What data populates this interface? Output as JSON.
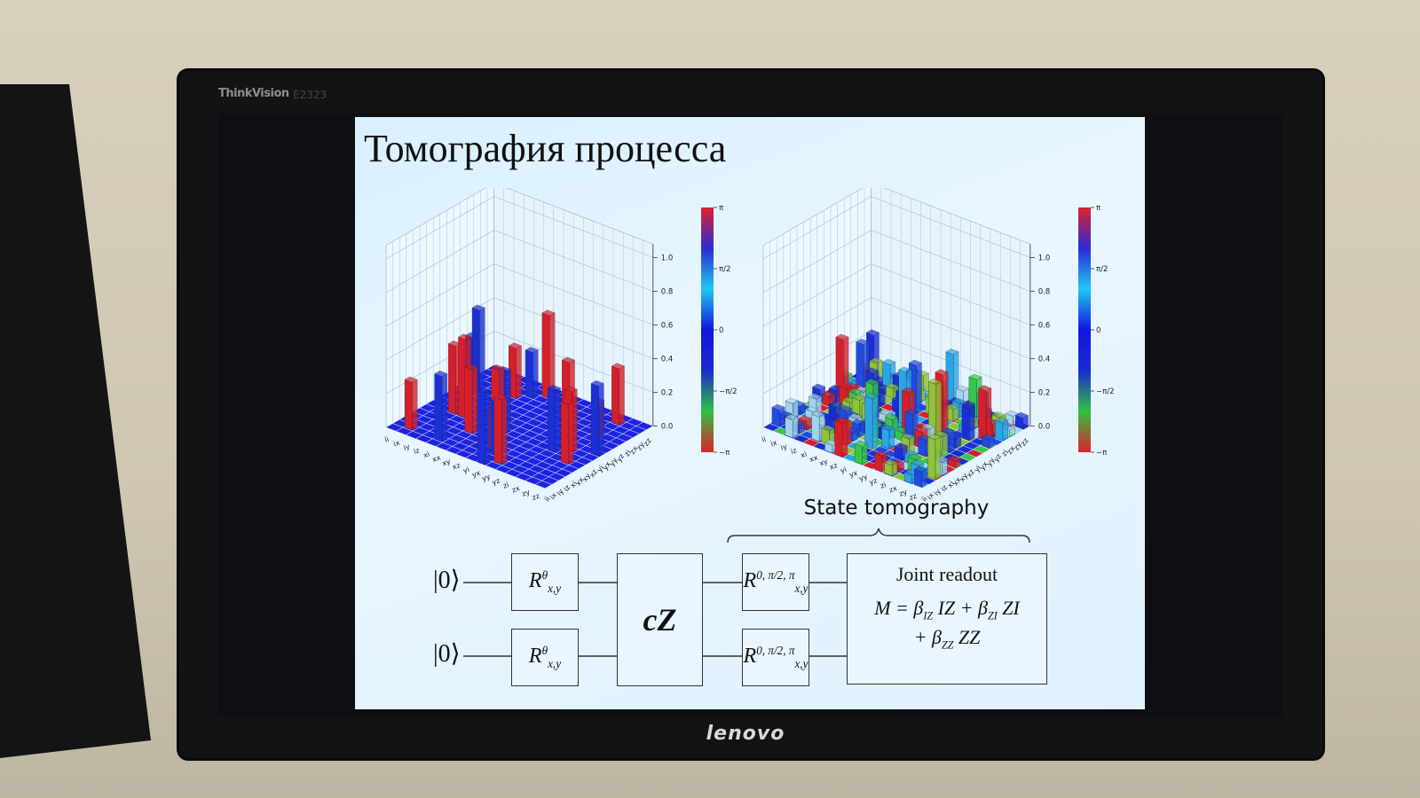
{
  "monitor": {
    "brand": "ThinkVision",
    "model": "E2323",
    "logo": "lenovo"
  },
  "slide": {
    "title": "Томография процесса",
    "plots": [
      {
        "z_ticks": [
          "0.0",
          "0.2",
          "0.4",
          "0.6",
          "0.8",
          "1.0"
        ],
        "x_labels": [
          "ii",
          "ix",
          "iy",
          "iz",
          "xi",
          "xx",
          "xy",
          "xz",
          "yi",
          "yx",
          "yy",
          "yz",
          "zi",
          "zx",
          "zy",
          "zz"
        ],
        "y_labels": [
          "ii",
          "ix",
          "iy",
          "iz",
          "xi",
          "xx",
          "xy",
          "xz",
          "yi",
          "yx",
          "yy",
          "yz",
          "zi",
          "zx",
          "zy",
          "zz"
        ],
        "colorbar_ticks": [
          "π",
          "π/2",
          "0",
          "−π/2",
          "−π"
        ]
      },
      {
        "z_ticks": [
          "0.0",
          "0.2",
          "0.4",
          "0.6",
          "0.8",
          "1.0"
        ],
        "x_labels": [
          "ii",
          "ix",
          "iy",
          "iz",
          "xi",
          "xx",
          "xy",
          "xz",
          "yi",
          "yx",
          "yy",
          "yz",
          "zi",
          "zx",
          "zy",
          "zz"
        ],
        "y_labels": [
          "ii",
          "ix",
          "iy",
          "iz",
          "xi",
          "xx",
          "xy",
          "xz",
          "yi",
          "yx",
          "yy",
          "yz",
          "zi",
          "zx",
          "zy",
          "zz"
        ],
        "colorbar_ticks": [
          "π",
          "π/2",
          "0",
          "−π/2",
          "−π"
        ]
      }
    ],
    "circuit": {
      "brace_label": "State tomography",
      "inputs": [
        "|0⟩",
        "|0⟩"
      ],
      "prep_gate": {
        "base": "R",
        "sup": "θ",
        "sub": "x,y"
      },
      "entangler": "cZ",
      "tomo_gate": {
        "base": "R",
        "sup": "0, π/2, π",
        "sub": "x,y"
      },
      "readout_title": "Joint readout",
      "readout_eq": [
        "M = β",
        "IZ",
        " IZ + β",
        "ZI",
        " ZI",
        "+ β",
        "ZZ",
        " ZZ"
      ]
    }
  }
}
